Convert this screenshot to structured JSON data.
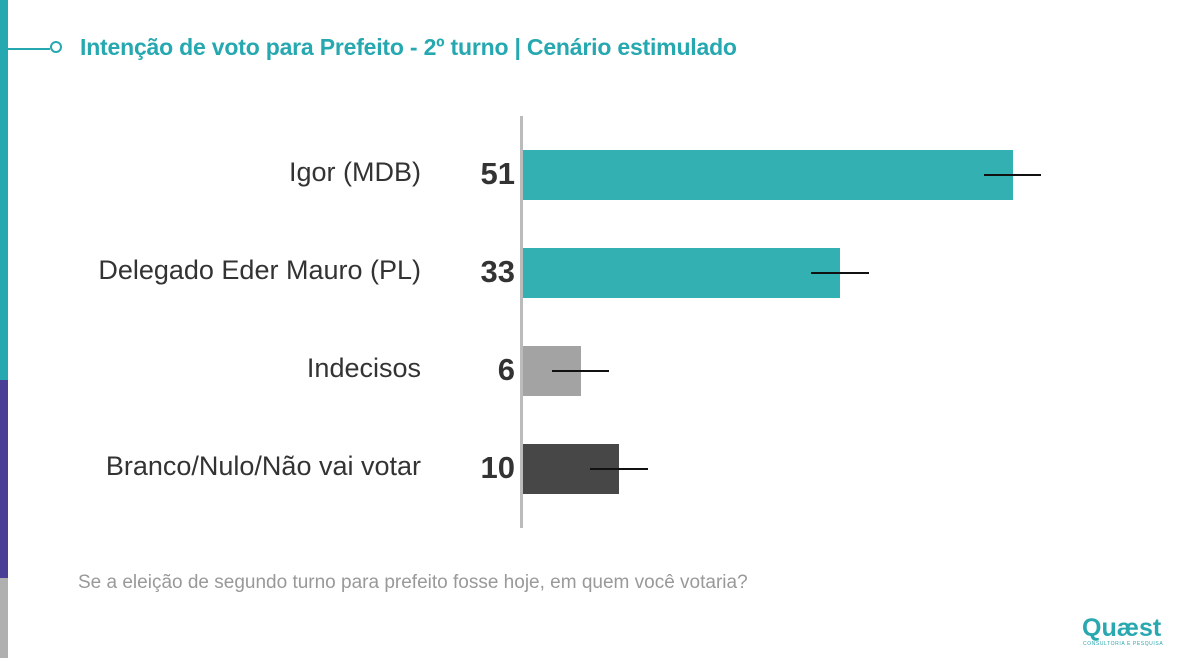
{
  "title": "Intenção de voto para Prefeito - 2º turno | Cenário estimulado",
  "question": "Se a eleição de segundo turno para prefeito fosse hoje, em quem você votaria?",
  "logo": {
    "name": "Quæst",
    "tagline": "CONSULTORIA E PESQUISA"
  },
  "colors": {
    "teal": "#33b0b1",
    "light_gray": "#a3a3a3",
    "dark_gray": "#474747",
    "title": "#25a8b0"
  },
  "chart_data": {
    "type": "bar",
    "orientation": "horizontal",
    "categories": [
      "Igor (MDB)",
      "Delegado Eder Mauro (PL)",
      "Indecisos",
      "Branco/Nulo/Não vai votar"
    ],
    "values": [
      51,
      33,
      6,
      10
    ],
    "bar_colors": [
      "#33b0b1",
      "#33b0b1",
      "#a3a3a3",
      "#474747"
    ],
    "error_margin": 3,
    "xlim": [
      0,
      60
    ],
    "grid": false
  }
}
